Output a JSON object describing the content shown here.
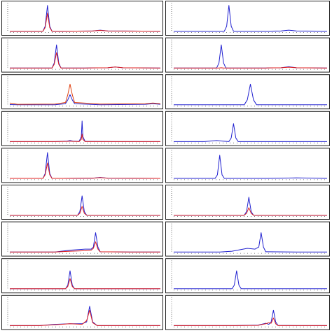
{
  "chart_data": [
    {
      "type": "line",
      "xlim": [
        0,
        100
      ],
      "ylim": [
        0,
        110
      ],
      "x": [
        0,
        15,
        22,
        23.5,
        25,
        26.5,
        28,
        35,
        55,
        60,
        65,
        100
      ],
      "series": [
        {
          "color": "#2020d0",
          "values": [
            1,
            1,
            1,
            20,
            100,
            20,
            1,
            1,
            2,
            5,
            2,
            1
          ]
        },
        {
          "color": "#e02020",
          "values": [
            1,
            1,
            1,
            15,
            70,
            15,
            1,
            1,
            2,
            4,
            2,
            1
          ]
        }
      ]
    },
    {
      "type": "line",
      "xlim": [
        0,
        100
      ],
      "ylim": [
        0,
        110
      ],
      "x": [
        0,
        25,
        33,
        34.5,
        36,
        37.5,
        39,
        60,
        70,
        75,
        80,
        100
      ],
      "series": [
        {
          "color": "#2020d0",
          "values": [
            1,
            1,
            1,
            20,
            100,
            20,
            1,
            1,
            2,
            5,
            2,
            1
          ]
        }
      ]
    },
    {
      "type": "line",
      "xlim": [
        0,
        100
      ],
      "ylim": [
        0,
        110
      ],
      "x": [
        0,
        20,
        28,
        29.5,
        31,
        32.5,
        34,
        50,
        65,
        70,
        75,
        100
      ],
      "series": [
        {
          "color": "#2020d0",
          "values": [
            1,
            1,
            1,
            20,
            90,
            20,
            1,
            1,
            2,
            5,
            2,
            1
          ]
        },
        {
          "color": "#e02020",
          "values": [
            1,
            1,
            1,
            15,
            60,
            15,
            1,
            1,
            2,
            5,
            2,
            1
          ]
        }
      ]
    },
    {
      "type": "line",
      "xlim": [
        0,
        100
      ],
      "ylim": [
        0,
        110
      ],
      "x": [
        0,
        20,
        28,
        29.5,
        31,
        32.5,
        34,
        60,
        70,
        75,
        80,
        100
      ],
      "series": [
        {
          "color": "#2020d0",
          "values": [
            1,
            1,
            1,
            20,
            90,
            20,
            1,
            1,
            2,
            6,
            2,
            1
          ]
        },
        {
          "color": "#e02020",
          "values": [
            1,
            1,
            1,
            1,
            2,
            1,
            1,
            1,
            2,
            4,
            2,
            1
          ]
        }
      ]
    },
    {
      "type": "line",
      "xlim": [
        0,
        100
      ],
      "ylim": [
        0,
        110
      ],
      "x": [
        0,
        5,
        30,
        37,
        38.5,
        40,
        41.5,
        43,
        60,
        90,
        95,
        100
      ],
      "series": [
        {
          "color": "#2020d0",
          "values": [
            2,
            1,
            1,
            5,
            20,
            40,
            20,
            5,
            1,
            3,
            5,
            3
          ]
        },
        {
          "color": "#e04010",
          "values": [
            8,
            3,
            4,
            10,
            40,
            80,
            40,
            10,
            4,
            5,
            8,
            5
          ]
        }
      ]
    },
    {
      "type": "line",
      "xlim": [
        0,
        100
      ],
      "ylim": [
        0,
        110
      ],
      "x": [
        0,
        30,
        46,
        48,
        50,
        52,
        54,
        70,
        100
      ],
      "series": [
        {
          "color": "#2020d0",
          "values": [
            1,
            1,
            1,
            20,
            80,
            20,
            1,
            1,
            1
          ]
        }
      ]
    },
    {
      "type": "line",
      "xlim": [
        0,
        100
      ],
      "ylim": [
        0,
        110
      ],
      "x": [
        0,
        30,
        38,
        40,
        42,
        46,
        47.5,
        48,
        48.5,
        50,
        70,
        100
      ],
      "series": [
        {
          "color": "#2020d0",
          "values": [
            1,
            1,
            3,
            5,
            3,
            2,
            20,
            80,
            20,
            2,
            1,
            1
          ]
        },
        {
          "color": "#e02020",
          "values": [
            1,
            1,
            2,
            3,
            2,
            1,
            10,
            30,
            10,
            1,
            1,
            1
          ]
        }
      ]
    },
    {
      "type": "line",
      "xlim": [
        0,
        100
      ],
      "ylim": [
        0,
        110
      ],
      "x": [
        0,
        20,
        28,
        32,
        36,
        37.5,
        39,
        40.5,
        42,
        70,
        100
      ],
      "series": [
        {
          "color": "#2020d0",
          "values": [
            1,
            1,
            5,
            3,
            1,
            15,
            70,
            15,
            1,
            1,
            1
          ]
        }
      ]
    },
    {
      "type": "line",
      "xlim": [
        0,
        100
      ],
      "ylim": [
        0,
        110
      ],
      "x": [
        0,
        15,
        22,
        23.5,
        25,
        26.5,
        28,
        35,
        55,
        60,
        65,
        100
      ],
      "series": [
        {
          "color": "#2020d0",
          "values": [
            1,
            1,
            1,
            20,
            100,
            20,
            1,
            1,
            2,
            5,
            2,
            1
          ]
        },
        {
          "color": "#e02020",
          "values": [
            1,
            1,
            1,
            15,
            60,
            15,
            1,
            1,
            2,
            4,
            2,
            1
          ]
        }
      ]
    },
    {
      "type": "line",
      "xlim": [
        0,
        100
      ],
      "ylim": [
        0,
        110
      ],
      "x": [
        0,
        20,
        27,
        28.5,
        30,
        31.5,
        33,
        60,
        70,
        80,
        100
      ],
      "series": [
        {
          "color": "#2020d0",
          "values": [
            1,
            1,
            1,
            15,
            90,
            15,
            1,
            1,
            2,
            3,
            1
          ]
        }
      ]
    },
    {
      "type": "line",
      "xlim": [
        0,
        100
      ],
      "ylim": [
        0,
        110
      ],
      "x": [
        0,
        30,
        45,
        46.5,
        48,
        49.5,
        51,
        70,
        100
      ],
      "series": [
        {
          "color": "#2020d0",
          "values": [
            1,
            1,
            1,
            15,
            75,
            15,
            1,
            1,
            1
          ]
        },
        {
          "color": "#e02020",
          "values": [
            1,
            1,
            1,
            8,
            35,
            8,
            1,
            1,
            1
          ]
        }
      ]
    },
    {
      "type": "line",
      "xlim": [
        0,
        100
      ],
      "ylim": [
        0,
        110
      ],
      "x": [
        0,
        30,
        46,
        47.5,
        49,
        50.5,
        52,
        70,
        100
      ],
      "series": [
        {
          "color": "#2020d0",
          "values": [
            1,
            1,
            1,
            15,
            70,
            15,
            1,
            1,
            1
          ]
        },
        {
          "color": "#e02020",
          "values": [
            1,
            1,
            1,
            8,
            30,
            8,
            1,
            1,
            1
          ]
        }
      ]
    },
    {
      "type": "line",
      "xlim": [
        0,
        100
      ],
      "ylim": [
        0,
        110
      ],
      "x": [
        0,
        30,
        40,
        50,
        54,
        55.5,
        57,
        58.5,
        60,
        80,
        100
      ],
      "series": [
        {
          "color": "#2020d0",
          "values": [
            1,
            1,
            8,
            12,
            12,
            20,
            75,
            20,
            2,
            1,
            1
          ]
        },
        {
          "color": "#e02020",
          "values": [
            1,
            1,
            4,
            6,
            8,
            15,
            40,
            12,
            2,
            1,
            1
          ]
        }
      ]
    },
    {
      "type": "line",
      "xlim": [
        0,
        100
      ],
      "ylim": [
        0,
        110
      ],
      "x": [
        0,
        30,
        38,
        48,
        53,
        55.5,
        57,
        58.5,
        60,
        80,
        100
      ],
      "series": [
        {
          "color": "#2020d0",
          "values": [
            1,
            1,
            4,
            15,
            12,
            20,
            75,
            20,
            2,
            1,
            1
          ]
        }
      ]
    },
    {
      "type": "line",
      "xlim": [
        0,
        100
      ],
      "ylim": [
        0,
        110
      ],
      "x": [
        0,
        30,
        37,
        38.5,
        40,
        41.5,
        43,
        60,
        100
      ],
      "series": [
        {
          "color": "#2020d0",
          "values": [
            1,
            1,
            1,
            15,
            70,
            15,
            1,
            1,
            1
          ]
        },
        {
          "color": "#e02020",
          "values": [
            1,
            1,
            1,
            10,
            40,
            10,
            1,
            1,
            1
          ]
        }
      ]
    },
    {
      "type": "line",
      "xlim": [
        0,
        100
      ],
      "ylim": [
        0,
        110
      ],
      "x": [
        0,
        30,
        38,
        39.5,
        41,
        42.5,
        44,
        60,
        100
      ],
      "series": [
        {
          "color": "#2020d0",
          "values": [
            1,
            1,
            1,
            15,
            70,
            15,
            1,
            1,
            1
          ]
        }
      ]
    },
    {
      "type": "line",
      "xlim": [
        0,
        100
      ],
      "ylim": [
        0,
        110
      ],
      "x": [
        0,
        20,
        30,
        40,
        48,
        51,
        53,
        55,
        58,
        80,
        100
      ],
      "series": [
        {
          "color": "#2020d0",
          "values": [
            1,
            1,
            6,
            8,
            8,
            15,
            75,
            15,
            1,
            1,
            1
          ]
        },
        {
          "color": "#e02020",
          "values": [
            1,
            1,
            4,
            8,
            6,
            20,
            60,
            12,
            1,
            1,
            1
          ]
        }
      ]
    },
    {
      "type": "line",
      "xlim": [
        0,
        100
      ],
      "ylim": [
        0,
        110
      ],
      "x": [
        0,
        40,
        55,
        60,
        62,
        63.5,
        65,
        66.5,
        68,
        80,
        100
      ],
      "series": [
        {
          "color": "#2020d0",
          "values": [
            1,
            1,
            3,
            10,
            6,
            15,
            60,
            15,
            2,
            1,
            1
          ]
        },
        {
          "color": "#e02020",
          "values": [
            1,
            1,
            2,
            8,
            12,
            10,
            30,
            8,
            1,
            1,
            1
          ]
        }
      ]
    }
  ]
}
